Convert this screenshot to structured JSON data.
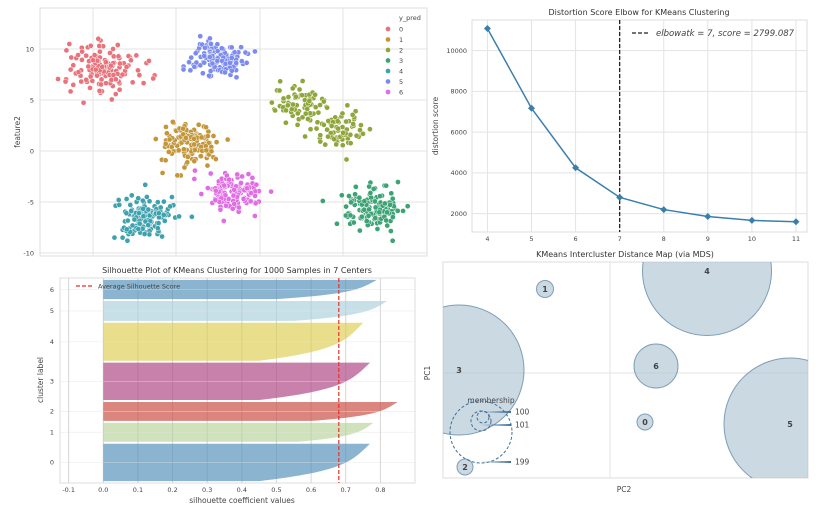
{
  "chart_data": [
    {
      "type": "scatter",
      "title": "",
      "xlabel": "",
      "ylabel": "feature2",
      "ylim": [
        -10.2,
        14
      ],
      "yticks": [
        "10",
        "5",
        "0",
        "-5",
        "-10"
      ],
      "ytick_values": [
        10,
        5,
        0,
        -5,
        -10
      ],
      "grid": true,
      "legend": {
        "title": "y_pred",
        "placement": "top-right",
        "entries": [
          "0",
          "1",
          "2",
          "3",
          "4",
          "5",
          "6"
        ]
      },
      "clusters": [
        {
          "label": "0",
          "color": "#e8737b",
          "centers": [
            [
              -4.3,
              8.2
            ]
          ],
          "std": 1.25,
          "n": 143
        },
        {
          "label": "1",
          "color": "#c3963a",
          "centers": [
            [
              0.8,
              0.7
            ]
          ],
          "std": 1.0,
          "n": 143
        },
        {
          "label": "2",
          "color": "#8fa63a",
          "centers": [
            [
              7.2,
              4.6
            ],
            [
              9.9,
              2.1
            ]
          ],
          "std": 0.95,
          "n": 143
        },
        {
          "label": "3",
          "color": "#3ca374",
          "centers": [
            [
              11.8,
              -5.6
            ]
          ],
          "std": 1.0,
          "n": 143
        },
        {
          "label": "4",
          "color": "#3ea2ae",
          "centers": [
            [
              -1.9,
              -6.4
            ]
          ],
          "std": 1.05,
          "n": 143
        },
        {
          "label": "5",
          "color": "#7b8bef",
          "centers": [
            [
              2.5,
              9.0
            ]
          ],
          "std": 0.9,
          "n": 143
        },
        {
          "label": "6",
          "color": "#e06de3",
          "centers": [
            [
              3.4,
              -4.1
            ]
          ],
          "std": 0.95,
          "n": 143
        }
      ]
    },
    {
      "type": "line",
      "title": "Distortion Score Elbow for KMeans Clustering",
      "xlabel": "",
      "ylabel": "distortion score",
      "x": [
        4,
        5,
        6,
        7,
        8,
        9,
        10,
        11
      ],
      "values": [
        11080,
        7170,
        4250,
        2799.087,
        2200,
        1860,
        1670,
        1600
      ],
      "xticks": [
        "4",
        "5",
        "6",
        "7",
        "8",
        "9",
        "10",
        "11"
      ],
      "yticks": [
        "2000",
        "4000",
        "6000",
        "8000",
        "10000"
      ],
      "ytick_values": [
        2000,
        4000,
        6000,
        8000,
        10000
      ],
      "xlim": [
        3.65,
        11.25
      ],
      "ylim": [
        1100,
        11500
      ],
      "color": "#3a7fab",
      "elbow": {
        "k": 7,
        "legend": "elbowatk = 7, score = 2799.087"
      },
      "grid": true,
      "legend_placement": "top-right"
    },
    {
      "type": "bar",
      "title": "Silhouette Plot of KMeans Clustering for 1000 Samples in 7 Centers",
      "xlabel": "silhouette coefficient values",
      "ylabel": "cluster label",
      "xticks": [
        "-0.1",
        "0.0",
        "0.1",
        "0.2",
        "0.3",
        "0.4",
        "0.5",
        "0.6",
        "0.7",
        "0.8"
      ],
      "xtick_values": [
        -0.1,
        0.0,
        0.1,
        0.2,
        0.3,
        0.4,
        0.5,
        0.6,
        0.7,
        0.8
      ],
      "xlim": [
        -0.125,
        0.9
      ],
      "ylim": [
        0,
        1080
      ],
      "average_score": 0.68,
      "average_label": "Average Silhouette Score",
      "average_color": "#e8312c",
      "clusters": [
        {
          "label": "0",
          "n": 197,
          "max": 0.77,
          "min": 0.45,
          "color": "#7eaccb"
        },
        {
          "label": "1",
          "n": 100,
          "max": 0.78,
          "min": 0.56,
          "color": "#cadfb4"
        },
        {
          "label": "2",
          "n": 100,
          "max": 0.85,
          "min": 0.6,
          "color": "#d6786f"
        },
        {
          "label": "3",
          "n": 197,
          "max": 0.77,
          "min": 0.45,
          "color": "#c173a2"
        },
        {
          "label": "4",
          "n": 200,
          "max": 0.75,
          "min": 0.45,
          "color": "#e5da80"
        },
        {
          "label": "5",
          "n": 105,
          "max": 0.82,
          "min": 0.55,
          "color": "#c1dde6"
        },
        {
          "label": "6",
          "n": 101,
          "max": 0.79,
          "min": 0.5,
          "color": "#7eaccb"
        }
      ],
      "grid": true,
      "legend_placement": "top-left"
    },
    {
      "type": "scatter",
      "title": "KMeans Intercluster Distance Map (via MDS)",
      "xlabel": "PC2",
      "ylabel": "PC1",
      "xlim": [
        -1.67,
        1.98
      ],
      "ylim": [
        -1.05,
        1.11
      ],
      "fill": "#a9c0d0",
      "stroke": "#7d9eb7",
      "centers": [
        {
          "label": "0",
          "x": 0.35,
          "y": -0.49,
          "r": 0.08
        },
        {
          "label": "1",
          "x": -0.65,
          "y": 0.84,
          "r": 0.085
        },
        {
          "label": "2",
          "x": -1.45,
          "y": -0.94,
          "r": 0.08
        },
        {
          "label": "3",
          "x": -1.51,
          "y": 0.03,
          "r": 0.65
        },
        {
          "label": "4",
          "x": 0.97,
          "y": 1.02,
          "r": 0.645
        },
        {
          "label": "5",
          "x": 1.8,
          "y": -0.51,
          "r": 0.66
        },
        {
          "label": "6",
          "x": 0.46,
          "y": 0.07,
          "r": 0.22
        }
      ],
      "membership_legend": {
        "title": "membership",
        "values": [
          "100",
          "101",
          "199"
        ]
      }
    }
  ]
}
